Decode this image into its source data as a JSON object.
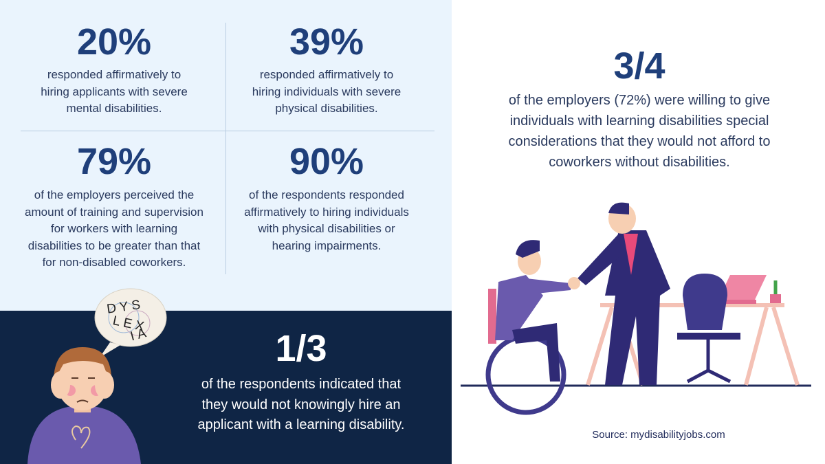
{
  "stats": [
    {
      "figure": "20%",
      "description_lines": [
        "responded affirmatively to",
        "hiring applicants with severe",
        "mental disabilities."
      ]
    },
    {
      "figure": "39%",
      "description_lines": [
        "responded affirmatively to",
        "hiring individuals with severe",
        "physical disabilities."
      ]
    },
    {
      "figure": "79%",
      "description_lines": [
        "of the employers perceived the",
        "amount of training and supervision",
        "for workers with learning",
        "disabilities to be greater than that",
        "for non-disabled coworkers."
      ]
    },
    {
      "figure": "90%",
      "description_lines": [
        "of the respondents responded",
        "affirmatively to hiring individuals",
        "with physical disabilities or",
        "hearing impairments."
      ]
    }
  ],
  "highlight": {
    "figure": "3/4",
    "description_lines": [
      "of the employers (72%) were willing to give",
      "individuals with learning disabilities special",
      "considerations that they would not afford to",
      "coworkers without disabilities."
    ]
  },
  "callout": {
    "figure": "1/3",
    "description_lines": [
      "of the respondents indicated that",
      "they would not knowingly hire an",
      "applicant with a learning disability."
    ]
  },
  "bubble_text": [
    "DYS",
    "LEX",
    "IA"
  ],
  "source": "Source: mydisabilityjobs.com"
}
